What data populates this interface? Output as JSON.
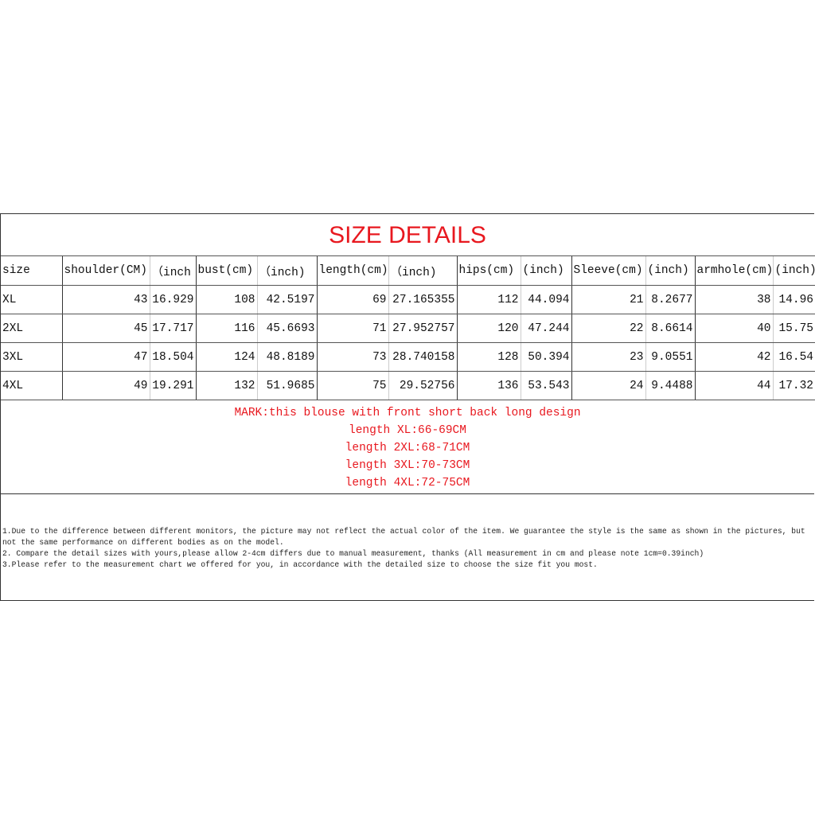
{
  "title": "SIZE DETAILS",
  "table": {
    "headers": [
      "size",
      "shoulder(CM)",
      "（inch",
      "bust(cm)",
      "（inch)",
      "length(cm)",
      "（inch)",
      "hips(cm)",
      "(inch)",
      "Sleeve(cm)",
      "(inch)",
      "armhole(cm)",
      "(inch)"
    ],
    "rows": [
      [
        "XL",
        "43",
        "16.929",
        "108",
        "42.5197",
        "69",
        "27.165355",
        "112",
        "44.094",
        "21",
        "8.2677",
        "38",
        "14.96"
      ],
      [
        "2XL",
        "45",
        "17.717",
        "116",
        "45.6693",
        "71",
        "27.952757",
        "120",
        "47.244",
        "22",
        "8.6614",
        "40",
        "15.75"
      ],
      [
        "3XL",
        "47",
        "18.504",
        "124",
        "48.8189",
        "73",
        "28.740158",
        "128",
        "50.394",
        "23",
        "9.0551",
        "42",
        "16.54"
      ],
      [
        "4XL",
        "49",
        "19.291",
        "132",
        "51.9685",
        "75",
        "29.52756",
        "136",
        "53.543",
        "24",
        "9.4488",
        "44",
        "17.32"
      ]
    ]
  },
  "mark": [
    "MARK:this blouse with front short back long design",
    "length XL:66-69CM",
    "length 2XL:68-71CM",
    "length 3XL:70-73CM",
    "length 4XL:72-75CM"
  ],
  "notes": [
    "1.Due to the difference between different monitors, the picture may not reflect the actual color of the item. We guarantee the style is the same as shown in the pictures, but not the same performance on different bodies as on the model.",
    "2. Compare the detail sizes with yours,please allow 2-4cm differs due to manual measurement, thanks (All measurement in cm and please note 1cm=0.39inch)",
    "3.Please refer to the measurement chart we offered for you, in accordance with the detailed size to choose the size fit you most."
  ],
  "colors": {
    "accent": "#e8181f"
  }
}
